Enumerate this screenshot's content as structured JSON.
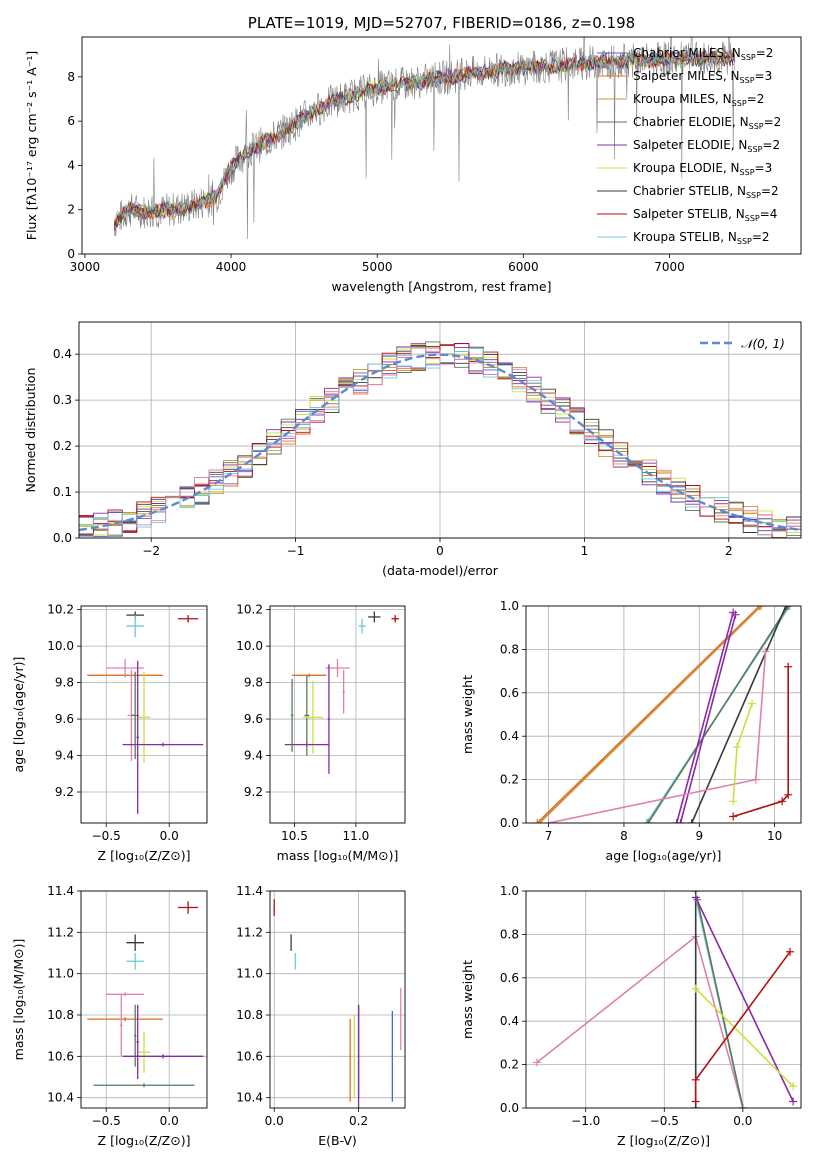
{
  "colors": {
    "Chabrier MILES": "#5b5bd6",
    "Salpeter MILES": "#e07020",
    "Kroupa MILES": "#d09040",
    "Chabrier ELODIE": "#5a7a5a",
    "Salpeter ELODIE": "#8a2aa8",
    "Kroupa ELODIE": "#c8e040",
    "Chabrier STELIB": "#3a3a3a",
    "Salpeter STELIB": "#b01010",
    "Kroupa STELIB": "#70c8d8",
    "pink": "#e080b0",
    "steel": "#4070c0",
    "spectrum": "#808080"
  },
  "chart_data": [
    {
      "id": "spectrum",
      "type": "line",
      "title": "PLATE=1019, MJD=52707, FIBERID=0186, z=0.198",
      "xlabel": "wavelength [Angstrom, rest frame]",
      "ylabel": "Flux [fλ10⁻¹⁷ erg cm⁻² s⁻¹ A⁻¹]",
      "xlim": [
        2980,
        7900
      ],
      "ylim": [
        0,
        9.8
      ],
      "xticks": [
        3000,
        4000,
        5000,
        6000,
        7000
      ],
      "yticks": [
        0,
        2,
        4,
        6,
        8
      ],
      "grid": false,
      "legend": "top-right",
      "legend_entries": [
        {
          "label": "Chabrier MILES, N",
          "sub": "SSP",
          "suffix": "=2",
          "color": "#5b5bd6"
        },
        {
          "label": "Salpeter MILES, N",
          "sub": "SSP",
          "suffix": "=3",
          "color": "#e07020"
        },
        {
          "label": "Kroupa MILES, N",
          "sub": "SSP",
          "suffix": "=2",
          "color": "#d09040"
        },
        {
          "label": "Chabrier ELODIE, N",
          "sub": "SSP",
          "suffix": "=2",
          "color": "#5a7a5a"
        },
        {
          "label": "Salpeter ELODIE, N",
          "sub": "SSP",
          "suffix": "=2",
          "color": "#8a2aa8"
        },
        {
          "label": "Kroupa ELODIE, N",
          "sub": "SSP",
          "suffix": "=3",
          "color": "#c8e040"
        },
        {
          "label": "Chabrier STELIB, N",
          "sub": "SSP",
          "suffix": "=2",
          "color": "#3a3a3a"
        },
        {
          "label": "Salpeter STELIB, N",
          "sub": "SSP",
          "suffix": "=4",
          "color": "#b01010"
        },
        {
          "label": "Kroupa STELIB, N",
          "sub": "SSP",
          "suffix": "=2",
          "color": "#70c8d8"
        }
      ],
      "model_continuum": [
        [
          3200,
          1.4
        ],
        [
          3300,
          2.0
        ],
        [
          3450,
          1.9
        ],
        [
          3600,
          2.0
        ],
        [
          3750,
          2.2
        ],
        [
          3900,
          2.6
        ],
        [
          4000,
          3.9
        ],
        [
          4100,
          4.6
        ],
        [
          4250,
          5.1
        ],
        [
          4400,
          5.7
        ],
        [
          4550,
          6.4
        ],
        [
          4700,
          6.9
        ],
        [
          4850,
          7.2
        ],
        [
          5000,
          7.5
        ],
        [
          5200,
          7.7
        ],
        [
          5400,
          7.9
        ],
        [
          5600,
          8.1
        ],
        [
          5800,
          8.3
        ],
        [
          6000,
          8.4
        ],
        [
          6200,
          8.5
        ],
        [
          6400,
          8.6
        ],
        [
          6600,
          8.7
        ],
        [
          6800,
          8.75
        ],
        [
          7000,
          8.8
        ],
        [
          7200,
          8.8
        ],
        [
          7400,
          8.85
        ]
      ],
      "series_extent": {
        "x": [
          3200,
          7450
        ]
      }
    },
    {
      "id": "residuals",
      "type": "histogram",
      "xlabel": "(data-model)/error",
      "ylabel": "Normed distribution",
      "xlim": [
        -2.5,
        2.5
      ],
      "ylim": [
        0,
        0.47
      ],
      "xticks": [
        -2,
        -1,
        0,
        1,
        2
      ],
      "xtick_labels": [
        "−2",
        "−1",
        "0",
        "1",
        "2"
      ],
      "yticks": [
        0,
        0.1,
        0.2,
        0.3,
        0.4
      ],
      "ytick_labels": [
        "0.0",
        "0.1",
        "0.2",
        "0.3",
        "0.4"
      ],
      "grid": true,
      "legend": "top-right",
      "legend_label": "𝒩(0, 1)",
      "bin_width": 0.1
    },
    {
      "id": "age_vs_Z",
      "type": "errorbar",
      "xlabel": "Z [log₁₀(Z/Z⊙)]",
      "ylabel": "age  [log₁₀(age/yr)]",
      "xlim": [
        -0.7,
        0.3
      ],
      "ylim": [
        9.03,
        10.22
      ],
      "xticks": [
        -0.5,
        0.0
      ],
      "xtick_labels": [
        "−0.5",
        "0.0"
      ],
      "yticks": [
        9.2,
        9.4,
        9.6,
        9.8,
        10.0,
        10.2
      ],
      "ytick_labels": [
        "9.2",
        "9.4",
        "9.6",
        "9.8",
        "10.0",
        "10.2"
      ],
      "grid": true,
      "points": [
        {
          "x": 0.15,
          "y": 10.15,
          "xerr": 0.08,
          "yerr": 0.02,
          "color": "#b01010"
        },
        {
          "x": -0.27,
          "y": 10.17,
          "xerr": 0.07,
          "yerr": 0.02,
          "color": "#3a3a3a"
        },
        {
          "x": -0.27,
          "y": 10.11,
          "xerr": 0.07,
          "yerr": 0.06,
          "color": "#70c8d8"
        },
        {
          "x": -0.35,
          "y": 9.84,
          "xerr": 0.3,
          "yerr": 0.01,
          "color": "#e07020"
        },
        {
          "x": -0.35,
          "y": 9.88,
          "xerr": 0.15,
          "yerr": 0.05,
          "color": "#e080b0"
        },
        {
          "x": -0.3,
          "y": 9.62,
          "xerr": 0.03,
          "yerr": 0.25,
          "color": "#e080b0"
        },
        {
          "x": -0.27,
          "y": 9.62,
          "xerr": 0.03,
          "yerr": 0.24,
          "color": "#5a7a5a"
        },
        {
          "x": -0.2,
          "y": 9.61,
          "xerr": 0.05,
          "yerr": 0.25,
          "color": "#c8e040"
        },
        {
          "x": -0.05,
          "y": 9.46,
          "xerr": 0.32,
          "yerr": 0.01,
          "color": "#8a2aa8"
        },
        {
          "x": -0.25,
          "y": 9.5,
          "xerr": 0.01,
          "yerr": 0.42,
          "color": "#8a2aa8"
        }
      ]
    },
    {
      "id": "age_vs_mass",
      "type": "errorbar",
      "xlabel": "mass [log₁₀(M/M⊙)]",
      "xlim": [
        10.3,
        11.4
      ],
      "ylim": [
        9.03,
        10.22
      ],
      "xticks": [
        10.5,
        11.0
      ],
      "xtick_labels": [
        "10.5",
        "11.0"
      ],
      "yticks": [
        9.2,
        9.4,
        9.6,
        9.8,
        10.0,
        10.2
      ],
      "ytick_labels": [
        "9.2",
        "9.4",
        "9.6",
        "9.8",
        "10.0",
        "10.2"
      ],
      "grid": true,
      "points": [
        {
          "x": 11.32,
          "y": 10.15,
          "xerr": 0.03,
          "yerr": 0.02,
          "color": "#b01010"
        },
        {
          "x": 11.15,
          "y": 10.16,
          "xerr": 0.05,
          "yerr": 0.03,
          "color": "#3a3a3a"
        },
        {
          "x": 11.05,
          "y": 10.11,
          "xerr": 0.03,
          "yerr": 0.04,
          "color": "#70c8d8"
        },
        {
          "x": 10.62,
          "y": 9.84,
          "xerr": 0.14,
          "yerr": 0.01,
          "color": "#e07020"
        },
        {
          "x": 10.85,
          "y": 9.88,
          "xerr": 0.1,
          "yerr": 0.05,
          "color": "#e080b0"
        },
        {
          "x": 10.9,
          "y": 9.75,
          "xerr": 0.01,
          "yerr": 0.12,
          "color": "#e080b0"
        },
        {
          "x": 10.6,
          "y": 9.62,
          "xerr": 0.02,
          "yerr": 0.22,
          "color": "#5a7a5a"
        },
        {
          "x": 10.65,
          "y": 9.61,
          "xerr": 0.08,
          "yerr": 0.2,
          "color": "#c8e040"
        },
        {
          "x": 10.6,
          "y": 9.46,
          "xerr": 0.18,
          "yerr": 0.01,
          "color": "#8a2aa8"
        },
        {
          "x": 10.78,
          "y": 9.6,
          "xerr": 0.01,
          "yerr": 0.3,
          "color": "#8a2aa8"
        },
        {
          "x": 10.48,
          "y": 9.62,
          "xerr": 0.01,
          "yerr": 0.2,
          "color": "#5a7a5a"
        }
      ]
    },
    {
      "id": "weight_vs_age",
      "type": "line",
      "xlabel": "age  [log₁₀(age/yr)]",
      "ylabel": "mass weight",
      "xlim": [
        6.7,
        10.35
      ],
      "ylim": [
        0,
        1
      ],
      "xticks": [
        7,
        8,
        9,
        10
      ],
      "yticks": [
        0,
        0.2,
        0.4,
        0.6,
        0.8,
        1.0
      ],
      "ytick_labels": [
        "0.0",
        "0.2",
        "0.4",
        "0.6",
        "0.8",
        "1.0"
      ],
      "grid": true,
      "series": [
        {
          "x": [
            6.85,
            9.8
          ],
          "y": [
            0.0,
            1.0
          ],
          "color": "#e07020"
        },
        {
          "x": [
            6.88,
            9.82
          ],
          "y": [
            0.0,
            1.0
          ],
          "color": "#d09040"
        },
        {
          "x": [
            8.3,
            10.2
          ],
          "y": [
            0.0,
            1.0
          ],
          "color": "#70c8d8"
        },
        {
          "x": [
            8.32,
            10.18
          ],
          "y": [
            0.0,
            1.0
          ],
          "color": "#5a7a5a"
        },
        {
          "x": [
            8.9,
            10.15
          ],
          "y": [
            0.0,
            1.0
          ],
          "color": "#3a3a3a"
        },
        {
          "x": [
            8.7,
            9.45
          ],
          "y": [
            0.0,
            0.97
          ],
          "color": "#8a2aa8"
        },
        {
          "x": [
            8.75,
            9.48
          ],
          "y": [
            0.0,
            0.96
          ],
          "color": "#8a2aa8"
        },
        {
          "x": [
            7.0,
            9.75,
            9.88
          ],
          "y": [
            0.0,
            0.2,
            0.79
          ],
          "color": "#e080b0"
        },
        {
          "x": [
            9.45,
            9.5,
            9.7
          ],
          "y": [
            0.1,
            0.35,
            0.55
          ],
          "color": "#c8e040"
        },
        {
          "x": [
            9.45,
            10.1,
            10.18,
            10.18
          ],
          "y": [
            0.03,
            0.1,
            0.13,
            0.72
          ],
          "color": "#b01010"
        }
      ]
    },
    {
      "id": "mass_vs_Z",
      "type": "errorbar",
      "xlabel": "Z [log₁₀(Z/Z⊙)]",
      "ylabel": "mass [log₁₀(M/M⊙)]",
      "xlim": [
        -0.7,
        0.3
      ],
      "ylim": [
        10.35,
        11.4
      ],
      "xticks": [
        -0.5,
        0.0
      ],
      "xtick_labels": [
        "−0.5",
        "0.0"
      ],
      "yticks": [
        10.4,
        10.6,
        10.8,
        11.0,
        11.2,
        11.4
      ],
      "ytick_labels": [
        "10.4",
        "10.6",
        "10.8",
        "11.0",
        "11.2",
        "11.4"
      ],
      "grid": true,
      "points": [
        {
          "x": 0.15,
          "y": 11.32,
          "xerr": 0.08,
          "yerr": 0.03,
          "color": "#b01010"
        },
        {
          "x": -0.27,
          "y": 11.15,
          "xerr": 0.07,
          "yerr": 0.04,
          "color": "#3a3a3a"
        },
        {
          "x": -0.27,
          "y": 11.06,
          "xerr": 0.07,
          "yerr": 0.04,
          "color": "#70c8d8"
        },
        {
          "x": -0.35,
          "y": 10.78,
          "xerr": 0.3,
          "yerr": 0.01,
          "color": "#e07020"
        },
        {
          "x": -0.35,
          "y": 10.9,
          "xerr": 0.15,
          "yerr": 0.01,
          "color": "#e080b0"
        },
        {
          "x": -0.38,
          "y": 10.75,
          "xerr": 0.01,
          "yerr": 0.15,
          "color": "#e080b0"
        },
        {
          "x": -0.27,
          "y": 10.7,
          "xerr": 0.01,
          "yerr": 0.15,
          "color": "#5a7a5a"
        },
        {
          "x": -0.2,
          "y": 10.62,
          "xerr": 0.05,
          "yerr": 0.1,
          "color": "#c8e040"
        },
        {
          "x": -0.05,
          "y": 10.6,
          "xerr": 0.32,
          "yerr": 0.01,
          "color": "#8a2aa8"
        },
        {
          "x": -0.25,
          "y": 10.67,
          "xerr": 0.01,
          "yerr": 0.18,
          "color": "#8a2aa8"
        },
        {
          "x": -0.2,
          "y": 10.46,
          "xerr": 0.4,
          "yerr": 0.01,
          "color": "#5a7a5a"
        }
      ]
    },
    {
      "id": "mass_vs_ebv",
      "type": "errorbar",
      "xlabel": "E(B-V)",
      "xlim": [
        -0.01,
        0.31
      ],
      "ylim": [
        10.35,
        11.4
      ],
      "xticks": [
        0.0,
        0.2
      ],
      "xtick_labels": [
        "0.0",
        "0.2"
      ],
      "yticks": [
        10.4,
        10.6,
        10.8,
        11.0,
        11.2,
        11.4
      ],
      "ytick_labels": [
        "10.4",
        "10.6",
        "10.8",
        "11.0",
        "11.2",
        "11.4"
      ],
      "grid": true,
      "points": [
        {
          "x": 0.0,
          "y": 11.32,
          "xerr": 0.0,
          "yerr": 0.04,
          "color": "#b01010"
        },
        {
          "x": 0.04,
          "y": 11.15,
          "xerr": 0.0,
          "yerr": 0.04,
          "color": "#3a3a3a"
        },
        {
          "x": 0.05,
          "y": 11.06,
          "xerr": 0.0,
          "yerr": 0.04,
          "color": "#70c8d8"
        },
        {
          "x": 0.18,
          "y": 10.58,
          "xerr": 0.0,
          "yerr": 0.2,
          "color": "#e07020"
        },
        {
          "x": 0.19,
          "y": 10.6,
          "xerr": 0.0,
          "yerr": 0.2,
          "color": "#c8e040"
        },
        {
          "x": 0.2,
          "y": 10.62,
          "xerr": 0.0,
          "yerr": 0.22,
          "color": "#3a3a3a"
        },
        {
          "x": 0.2,
          "y": 10.6,
          "xerr": 0.0,
          "yerr": 0.25,
          "color": "#8a2aa8"
        },
        {
          "x": 0.28,
          "y": 10.6,
          "xerr": 0.0,
          "yerr": 0.22,
          "color": "#4070c0"
        },
        {
          "x": 0.3,
          "y": 10.78,
          "xerr": 0.0,
          "yerr": 0.15,
          "color": "#e080b0"
        }
      ]
    },
    {
      "id": "weight_vs_Z",
      "type": "line",
      "xlabel": "Z [log₁₀(Z/Z⊙)]",
      "ylabel": "mass weight",
      "xlim": [
        -1.38,
        0.37
      ],
      "ylim": [
        0,
        1
      ],
      "xticks": [
        -1.0,
        -0.5,
        0.0
      ],
      "xtick_labels": [
        "−1.0",
        "−0.5",
        "0.0"
      ],
      "yticks": [
        0,
        0.2,
        0.4,
        0.6,
        0.8,
        1.0
      ],
      "ytick_labels": [
        "0.0",
        "0.2",
        "0.4",
        "0.6",
        "0.8",
        "1.0"
      ],
      "grid": true,
      "series": [
        {
          "x": [
            -1.31,
            -0.3,
            0.0
          ],
          "y": [
            0.21,
            0.79,
            0.0
          ],
          "color": "#e080b0"
        },
        {
          "x": [
            -0.3,
            -0.3
          ],
          "y": [
            0.0,
            1.0
          ],
          "color": "#3a3a3a"
        },
        {
          "x": [
            -0.3,
            0.0
          ],
          "y": [
            0.97,
            0.0
          ],
          "color": "#70c8d8"
        },
        {
          "x": [
            -0.29,
            0.0
          ],
          "y": [
            0.96,
            0.0
          ],
          "color": "#5a7a5a"
        },
        {
          "x": [
            -0.3,
            0.32
          ],
          "y": [
            0.97,
            0.03
          ],
          "color": "#8a2aa8"
        },
        {
          "x": [
            -0.3,
            0.32
          ],
          "y": [
            0.55,
            0.1
          ],
          "color": "#c8e040"
        },
        {
          "x": [
            -0.3,
            -0.3,
            0.3
          ],
          "y": [
            0.03,
            0.13,
            0.72
          ],
          "color": "#b01010"
        }
      ]
    }
  ]
}
